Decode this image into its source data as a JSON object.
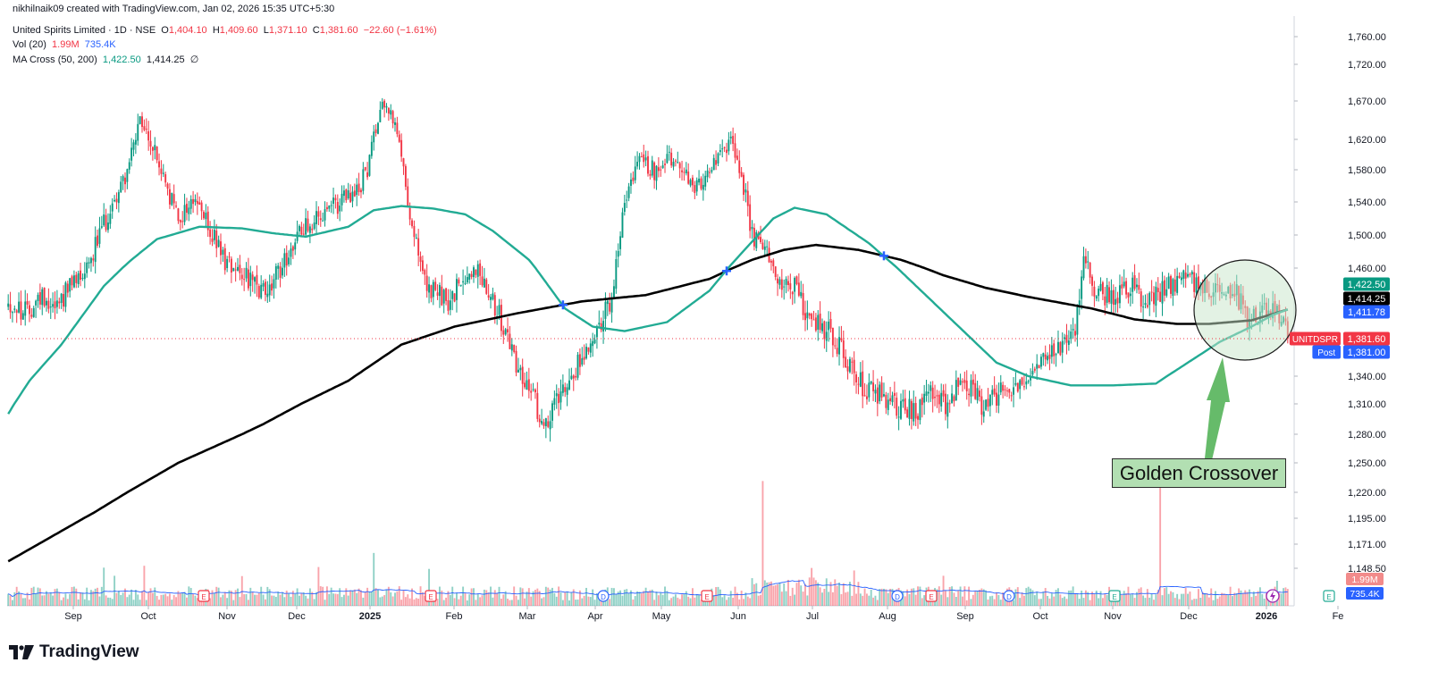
{
  "header": {
    "credit": "nikhilnaik09 created with TradingView.com, Jan 02, 2026 15:35 UTC+5:30",
    "symbol": "United Spirits Limited · 1D · NSE",
    "ohlc": {
      "o_label": "O",
      "o": "1,404.10",
      "h_label": "H",
      "h": "1,409.60",
      "l_label": "L",
      "l": "1,371.10",
      "c_label": "C",
      "c": "1,381.60",
      "change": "−22.60 (−1.61%)"
    },
    "volume": {
      "label": "Vol (20)",
      "v1": "1.99M",
      "v2": "735.4K"
    },
    "ma_cross": {
      "label": "MA Cross (50, 200)",
      "v1": "1,422.50",
      "v2": "1,414.25",
      "v3": "∅"
    }
  },
  "logo": {
    "text": "TradingView"
  },
  "annotation": {
    "text": "Golden Crossover"
  },
  "colors": {
    "up": "#089981",
    "down": "#f23645",
    "ma50": "#22ab94",
    "ma200": "#000000",
    "cross_marker": "#2962ff",
    "volume_ma": "#2962ff",
    "circle_fill": "#c8e6c9",
    "arrow": "#66bb6a"
  },
  "chart_data": {
    "type": "candlestick",
    "y_axis": {
      "ticks": [
        "1,760.00",
        "1,720.00",
        "1,670.00",
        "1,620.00",
        "1,580.00",
        "1,540.00",
        "1,500.00",
        "1,460.00",
        "1,340.00",
        "1,310.00",
        "1,280.00",
        "1,250.00",
        "1,220.00",
        "1,195.00",
        "1,171.00",
        "1,148.50"
      ],
      "range": [
        1130,
        1775
      ]
    },
    "x_axis": {
      "ticks": [
        "Sep",
        "Oct",
        "Nov",
        "Dec",
        "2025",
        "Feb",
        "Mar",
        "Apr",
        "May",
        "Jun",
        "Jul",
        "Aug",
        "Sep",
        "Oct",
        "Nov",
        "Dec",
        "2026",
        "Fe"
      ],
      "bold_ticks": [
        "2025",
        "2026"
      ]
    },
    "price_labels": [
      {
        "text": "1,422.50",
        "price": 1422.5,
        "color": "#089981",
        "text_color": "#ffffff"
      },
      {
        "text": "1,414.25",
        "price": 1414.25,
        "color": "#000000",
        "text_color": "#ffffff"
      },
      {
        "text": "1,411.78",
        "price": 1411.78,
        "color": "#2962ff",
        "text_color": "#ffffff"
      },
      {
        "text": "1,381.60",
        "price": 1381.6,
        "color": "#f23645",
        "text_color": "#ffffff",
        "tag": "UNITDSPR"
      },
      {
        "text": "1,381.00",
        "price": 1381.0,
        "color": "#2962ff",
        "text_color": "#ffffff",
        "tag": "Post"
      }
    ],
    "volume_labels": [
      {
        "text": "1.99M",
        "color": "#f28b8b"
      },
      {
        "text": "735.4K",
        "color": "#2962ff"
      }
    ],
    "last_close": 1381.6,
    "ma50_anchors": [
      [
        0,
        1300
      ],
      [
        10,
        1335
      ],
      [
        25,
        1375
      ],
      [
        45,
        1440
      ],
      [
        58,
        1470
      ],
      [
        70,
        1495
      ],
      [
        90,
        1510
      ],
      [
        110,
        1508
      ],
      [
        125,
        1502
      ],
      [
        140,
        1498
      ],
      [
        160,
        1510
      ],
      [
        172,
        1530
      ],
      [
        185,
        1535
      ],
      [
        200,
        1532
      ],
      [
        215,
        1525
      ],
      [
        228,
        1505
      ],
      [
        245,
        1470
      ],
      [
        262,
        1415
      ],
      [
        275,
        1395
      ],
      [
        290,
        1390
      ],
      [
        310,
        1400
      ],
      [
        330,
        1435
      ],
      [
        345,
        1478
      ],
      [
        360,
        1520
      ],
      [
        370,
        1533
      ],
      [
        385,
        1525
      ],
      [
        405,
        1490
      ],
      [
        425,
        1445
      ],
      [
        445,
        1400
      ],
      [
        465,
        1355
      ],
      [
        480,
        1340
      ],
      [
        500,
        1330
      ],
      [
        520,
        1330
      ],
      [
        540,
        1332
      ],
      [
        555,
        1355
      ],
      [
        570,
        1378
      ],
      [
        585,
        1395
      ],
      [
        595,
        1408
      ],
      [
        602,
        1414
      ]
    ],
    "ma200_anchors": [
      [
        0,
        1155
      ],
      [
        40,
        1200
      ],
      [
        80,
        1250
      ],
      [
        120,
        1290
      ],
      [
        160,
        1335
      ],
      [
        185,
        1375
      ],
      [
        210,
        1395
      ],
      [
        240,
        1410
      ],
      [
        270,
        1423
      ],
      [
        300,
        1430
      ],
      [
        330,
        1448
      ],
      [
        350,
        1470
      ],
      [
        365,
        1482
      ],
      [
        380,
        1488
      ],
      [
        400,
        1482
      ],
      [
        420,
        1470
      ],
      [
        440,
        1452
      ],
      [
        460,
        1438
      ],
      [
        480,
        1428
      ],
      [
        510,
        1415
      ],
      [
        530,
        1403
      ],
      [
        550,
        1398
      ],
      [
        565,
        1398
      ],
      [
        585,
        1402
      ],
      [
        602,
        1414
      ]
    ],
    "price_anchors": [
      [
        0,
        1420
      ],
      [
        8,
        1410
      ],
      [
        16,
        1430
      ],
      [
        22,
        1420
      ],
      [
        30,
        1440
      ],
      [
        38,
        1470
      ],
      [
        48,
        1530
      ],
      [
        56,
        1580
      ],
      [
        62,
        1640
      ],
      [
        68,
        1610
      ],
      [
        74,
        1560
      ],
      [
        80,
        1520
      ],
      [
        88,
        1545
      ],
      [
        94,
        1510
      ],
      [
        102,
        1470
      ],
      [
        110,
        1460
      ],
      [
        118,
        1430
      ],
      [
        124,
        1440
      ],
      [
        132,
        1480
      ],
      [
        140,
        1515
      ],
      [
        148,
        1520
      ],
      [
        156,
        1540
      ],
      [
        164,
        1550
      ],
      [
        170,
        1590
      ],
      [
        175,
        1670
      ],
      [
        180,
        1660
      ],
      [
        186,
        1580
      ],
      [
        190,
        1510
      ],
      [
        196,
        1440
      ],
      [
        202,
        1430
      ],
      [
        208,
        1420
      ],
      [
        214,
        1450
      ],
      [
        220,
        1460
      ],
      [
        226,
        1440
      ],
      [
        232,
        1400
      ],
      [
        240,
        1350
      ],
      [
        248,
        1310
      ],
      [
        254,
        1290
      ],
      [
        260,
        1330
      ],
      [
        266,
        1345
      ],
      [
        272,
        1370
      ],
      [
        278,
        1400
      ],
      [
        284,
        1420
      ],
      [
        290,
        1540
      ],
      [
        296,
        1590
      ],
      [
        304,
        1580
      ],
      [
        310,
        1600
      ],
      [
        318,
        1570
      ],
      [
        326,
        1560
      ],
      [
        334,
        1590
      ],
      [
        340,
        1620
      ],
      [
        346,
        1560
      ],
      [
        350,
        1500
      ],
      [
        356,
        1480
      ],
      [
        362,
        1450
      ],
      [
        370,
        1440
      ],
      [
        378,
        1400
      ],
      [
        386,
        1390
      ],
      [
        394,
        1360
      ],
      [
        402,
        1330
      ],
      [
        410,
        1320
      ],
      [
        418,
        1310
      ],
      [
        426,
        1300
      ],
      [
        434,
        1320
      ],
      [
        442,
        1310
      ],
      [
        450,
        1340
      ],
      [
        458,
        1310
      ],
      [
        466,
        1320
      ],
      [
        474,
        1330
      ],
      [
        482,
        1350
      ],
      [
        490,
        1360
      ],
      [
        496,
        1370
      ],
      [
        502,
        1390
      ],
      [
        506,
        1470
      ],
      [
        512,
        1430
      ],
      [
        520,
        1430
      ],
      [
        528,
        1440
      ],
      [
        536,
        1420
      ],
      [
        544,
        1440
      ],
      [
        552,
        1450
      ],
      [
        560,
        1440
      ],
      [
        570,
        1440
      ],
      [
        578,
        1430
      ],
      [
        584,
        1400
      ],
      [
        590,
        1410
      ],
      [
        596,
        1420
      ],
      [
        602,
        1382
      ]
    ],
    "notable_volume": [
      [
        45,
        122
      ],
      [
        50,
        96
      ],
      [
        64,
        128
      ],
      [
        110,
        95
      ],
      [
        146,
        124
      ],
      [
        172,
        169
      ],
      [
        198,
        118
      ],
      [
        355,
        399
      ],
      [
        378,
        121
      ],
      [
        398,
        113
      ],
      [
        440,
        96
      ],
      [
        542,
        452
      ],
      [
        597,
        80
      ],
      [
        602,
        54
      ]
    ]
  }
}
